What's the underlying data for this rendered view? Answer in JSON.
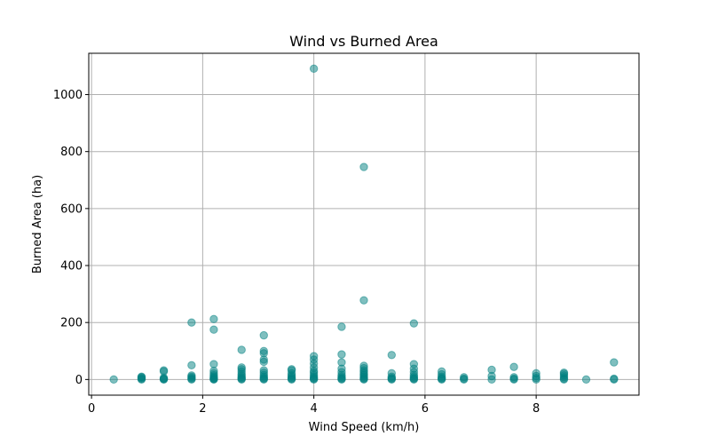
{
  "chart_data": {
    "type": "scatter",
    "title": "Wind vs Burned Area",
    "xlabel": "Wind Speed (km/h)",
    "ylabel": "Burned Area (ha)",
    "xlim": [
      -0.05,
      9.85
    ],
    "ylim": [
      -55,
      1145
    ],
    "xticks": [
      0,
      2,
      4,
      6,
      8
    ],
    "yticks": [
      0,
      200,
      400,
      600,
      800,
      1000
    ],
    "grid": true,
    "marker_color": "#008080",
    "marker_opacity": 0.5,
    "points": [
      [
        0.4,
        0
      ],
      [
        0.9,
        0
      ],
      [
        0.9,
        2
      ],
      [
        0.9,
        5
      ],
      [
        0.9,
        8
      ],
      [
        0.9,
        10
      ],
      [
        1.3,
        0
      ],
      [
        1.3,
        1
      ],
      [
        1.3,
        3
      ],
      [
        1.3,
        6
      ],
      [
        1.3,
        28
      ],
      [
        1.3,
        32
      ],
      [
        1.8,
        0
      ],
      [
        1.8,
        2
      ],
      [
        1.8,
        6
      ],
      [
        1.8,
        10
      ],
      [
        1.8,
        14
      ],
      [
        1.8,
        50
      ],
      [
        1.8,
        200
      ],
      [
        2.2,
        0
      ],
      [
        2.2,
        1
      ],
      [
        2.2,
        3
      ],
      [
        2.2,
        6
      ],
      [
        2.2,
        10
      ],
      [
        2.2,
        15
      ],
      [
        2.2,
        22
      ],
      [
        2.2,
        30
      ],
      [
        2.2,
        54
      ],
      [
        2.2,
        175
      ],
      [
        2.2,
        212
      ],
      [
        2.7,
        0
      ],
      [
        2.7,
        2
      ],
      [
        2.7,
        5
      ],
      [
        2.7,
        9
      ],
      [
        2.7,
        14
      ],
      [
        2.7,
        20
      ],
      [
        2.7,
        28
      ],
      [
        2.7,
        36
      ],
      [
        2.7,
        42
      ],
      [
        2.7,
        104
      ],
      [
        3.1,
        0
      ],
      [
        3.1,
        2
      ],
      [
        3.1,
        5
      ],
      [
        3.1,
        10
      ],
      [
        3.1,
        16
      ],
      [
        3.1,
        24
      ],
      [
        3.1,
        32
      ],
      [
        3.1,
        62
      ],
      [
        3.1,
        70
      ],
      [
        3.1,
        92
      ],
      [
        3.1,
        100
      ],
      [
        3.1,
        155
      ],
      [
        3.6,
        0
      ],
      [
        3.6,
        2
      ],
      [
        3.6,
        5
      ],
      [
        3.6,
        10
      ],
      [
        3.6,
        15
      ],
      [
        3.6,
        22
      ],
      [
        3.6,
        32
      ],
      [
        3.6,
        36
      ],
      [
        4.0,
        0
      ],
      [
        4.0,
        2
      ],
      [
        4.0,
        5
      ],
      [
        4.0,
        10
      ],
      [
        4.0,
        16
      ],
      [
        4.0,
        24
      ],
      [
        4.0,
        30
      ],
      [
        4.0,
        42
      ],
      [
        4.0,
        56
      ],
      [
        4.0,
        70
      ],
      [
        4.0,
        82
      ],
      [
        4.0,
        1091
      ],
      [
        4.5,
        0
      ],
      [
        4.5,
        2
      ],
      [
        4.5,
        5
      ],
      [
        4.5,
        10
      ],
      [
        4.5,
        16
      ],
      [
        4.5,
        26
      ],
      [
        4.5,
        38
      ],
      [
        4.5,
        60
      ],
      [
        4.5,
        88
      ],
      [
        4.5,
        185
      ],
      [
        4.9,
        0
      ],
      [
        4.9,
        2
      ],
      [
        4.9,
        5
      ],
      [
        4.9,
        10
      ],
      [
        4.9,
        15
      ],
      [
        4.9,
        20
      ],
      [
        4.9,
        26
      ],
      [
        4.9,
        32
      ],
      [
        4.9,
        40
      ],
      [
        4.9,
        48
      ],
      [
        4.9,
        278
      ],
      [
        4.9,
        746
      ],
      [
        5.4,
        0
      ],
      [
        5.4,
        2
      ],
      [
        5.4,
        5
      ],
      [
        5.4,
        10
      ],
      [
        5.4,
        22
      ],
      [
        5.4,
        86
      ],
      [
        5.8,
        0
      ],
      [
        5.8,
        2
      ],
      [
        5.8,
        5
      ],
      [
        5.8,
        10
      ],
      [
        5.8,
        16
      ],
      [
        5.8,
        26
      ],
      [
        5.8,
        38
      ],
      [
        5.8,
        54
      ],
      [
        5.8,
        197
      ],
      [
        6.3,
        0
      ],
      [
        6.3,
        2
      ],
      [
        6.3,
        5
      ],
      [
        6.3,
        10
      ],
      [
        6.3,
        18
      ],
      [
        6.3,
        28
      ],
      [
        6.7,
        0
      ],
      [
        6.7,
        3
      ],
      [
        6.7,
        8
      ],
      [
        7.2,
        0
      ],
      [
        7.2,
        12
      ],
      [
        7.2,
        34
      ],
      [
        7.6,
        0
      ],
      [
        7.6,
        3
      ],
      [
        7.6,
        8
      ],
      [
        7.6,
        44
      ],
      [
        8.0,
        0
      ],
      [
        8.0,
        5
      ],
      [
        8.0,
        12
      ],
      [
        8.0,
        22
      ],
      [
        8.5,
        0
      ],
      [
        8.5,
        3
      ],
      [
        8.5,
        8
      ],
      [
        8.5,
        14
      ],
      [
        8.5,
        20
      ],
      [
        8.5,
        24
      ],
      [
        8.9,
        0
      ],
      [
        9.4,
        0
      ],
      [
        9.4,
        3
      ],
      [
        9.4,
        60
      ]
    ]
  }
}
